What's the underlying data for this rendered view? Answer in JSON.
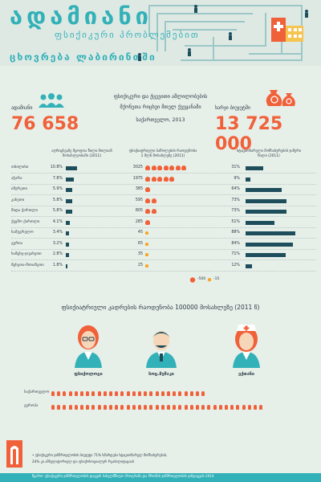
{
  "header": {
    "title": "ადამიანი",
    "subtitle": "ფსიქიკური პრობლემებით",
    "third_line": "ცხოვრება ლაბირინთში"
  },
  "stats": {
    "left_label": "ადამიანი",
    "left_value": "76 658",
    "center_line1": "ფსიქიკური და ქცევითი აშლილობების",
    "center_line2": "მქონეთა რიცხვი მთელ ქვეყანაში",
    "center_line3": "საქართველო, 2013",
    "right_label": "ხარჯი ბიუჯეტში",
    "right_value": "13 725 000"
  },
  "columns": {
    "col1": "აღრიცხვაზე მყოფთა წილი მთლიან მოსახლეობაში (2011)",
    "col2": "ფსიქიატრიული საწოლების რაოდენობა 1 მლნ მოსახლეზე (2011)",
    "col3": "სტაციონარული მომსახურების ჯამური წილი (2011)"
  },
  "rows": [
    {
      "region": "თბილისი",
      "pct1": "10.8%",
      "v1": 10.8,
      "beds": "3025",
      "bag_n": 7,
      "pct3": "31%",
      "v3": 31
    },
    {
      "region": "აჭარა",
      "pct1": "7.8%",
      "v1": 7.8,
      "beds": "1975",
      "bag_n": 5,
      "pct3": "9%",
      "v3": 9
    },
    {
      "region": "იმერეთი",
      "pct1": "5.9%",
      "v1": 5.9,
      "beds": "385",
      "bag_n": 1,
      "pct3": "64%",
      "v3": 64
    },
    {
      "region": "კახეთი",
      "pct1": "5.8%",
      "v1": 5.8,
      "beds": "595",
      "bag_n": 2,
      "pct3": "73%",
      "v3": 73
    },
    {
      "region": "შიდა ქართლი",
      "pct1": "5.8%",
      "v1": 5.8,
      "beds": "805",
      "bag_n": 2,
      "pct3": "73%",
      "v3": 73
    },
    {
      "region": "ქვემო ქართლი",
      "pct1": "4.1%",
      "v1": 4.1,
      "beds": "285",
      "bag_n": 1,
      "pct3": "51%",
      "v3": 51
    },
    {
      "region": "სამეგრელო",
      "pct1": "3.4%",
      "v1": 3.4,
      "beds": "45",
      "bag_n": 0,
      "pct3": "88%",
      "v3": 88
    },
    {
      "region": "გურია",
      "pct1": "3.2%",
      "v1": 3.2,
      "beds": "65",
      "bag_n": 0,
      "pct3": "84%",
      "v3": 84
    },
    {
      "region": "სამცხე-ჯავახეთი",
      "pct1": "2.8%",
      "v1": 2.8,
      "beds": "35",
      "bag_n": 0,
      "pct3": "71%",
      "v3": 71
    },
    {
      "region": "მცხეთა-მთიანეთი",
      "pct1": "1.8%",
      "v1": 1.8,
      "beds": "25",
      "bag_n": 0,
      "pct3": "12%",
      "v3": 12
    }
  ],
  "legend": {
    "big": "-500",
    "small": "-15"
  },
  "staff": {
    "title": "ფსიქიატრიული კადრების რაოდენობა 100000 მოსახლეზე (2011 წ)",
    "doc1": "ფსიქოლოგი",
    "doc2": "სოც.მუშაკი",
    "doc3": "ექთანი",
    "row1": "საქართველო",
    "row2": "ევროპა",
    "row1_n": 27,
    "row2_n": 37
  },
  "footer": {
    "note1": "• ფსიქიკური ჯანმრთელობის ბიუჯეტი 71% ხმარდება სტაციონარულ მომსახურებას,",
    "note2": "24% კი ამბულატორიულ და ფსიქოსოციალურ რეაბილიტაციას",
    "source": "წყარო: ფსიქიკური ჯანმრთელობის დაცვის სახელმწიფო პროგრამა და შრომის ჯანმრთელობის ჯანდაცვის 2014"
  },
  "colors": {
    "accent": "#f0613a",
    "teal": "#33b1b8",
    "navy": "#1e4e5c"
  }
}
